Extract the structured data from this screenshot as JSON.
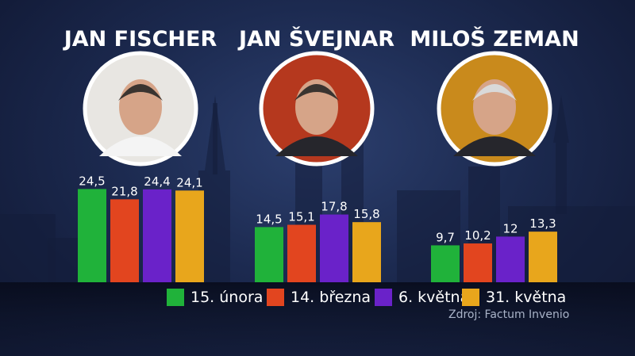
{
  "chart_data": {
    "type": "bar",
    "categories": [
      "JAN FISCHER",
      "JAN ŠVEJNAR",
      "MILOŠ ZEMAN"
    ],
    "series": [
      {
        "name": "15. února",
        "color": "#20b23a",
        "values": [
          24.5,
          14.5,
          9.7
        ]
      },
      {
        "name": "14. března",
        "color": "#e2451f",
        "values": [
          21.8,
          15.1,
          10.2
        ]
      },
      {
        "name": "6. května",
        "color": "#6a22c9",
        "values": [
          24.4,
          17.8,
          12
        ]
      },
      {
        "name": "31. května",
        "color": "#e8a61c",
        "values": [
          24.1,
          15.8,
          13.3
        ]
      }
    ],
    "value_labels": [
      [
        "24,5",
        "21,8",
        "24,4",
        "24,1"
      ],
      [
        "14,5",
        "15,1",
        "17,8",
        "15,8"
      ],
      [
        "9,7",
        "10,2",
        "12",
        "13,3"
      ]
    ],
    "legend_position": "bottom",
    "grid": false,
    "source": "Zdroj: Factum Invenio"
  }
}
